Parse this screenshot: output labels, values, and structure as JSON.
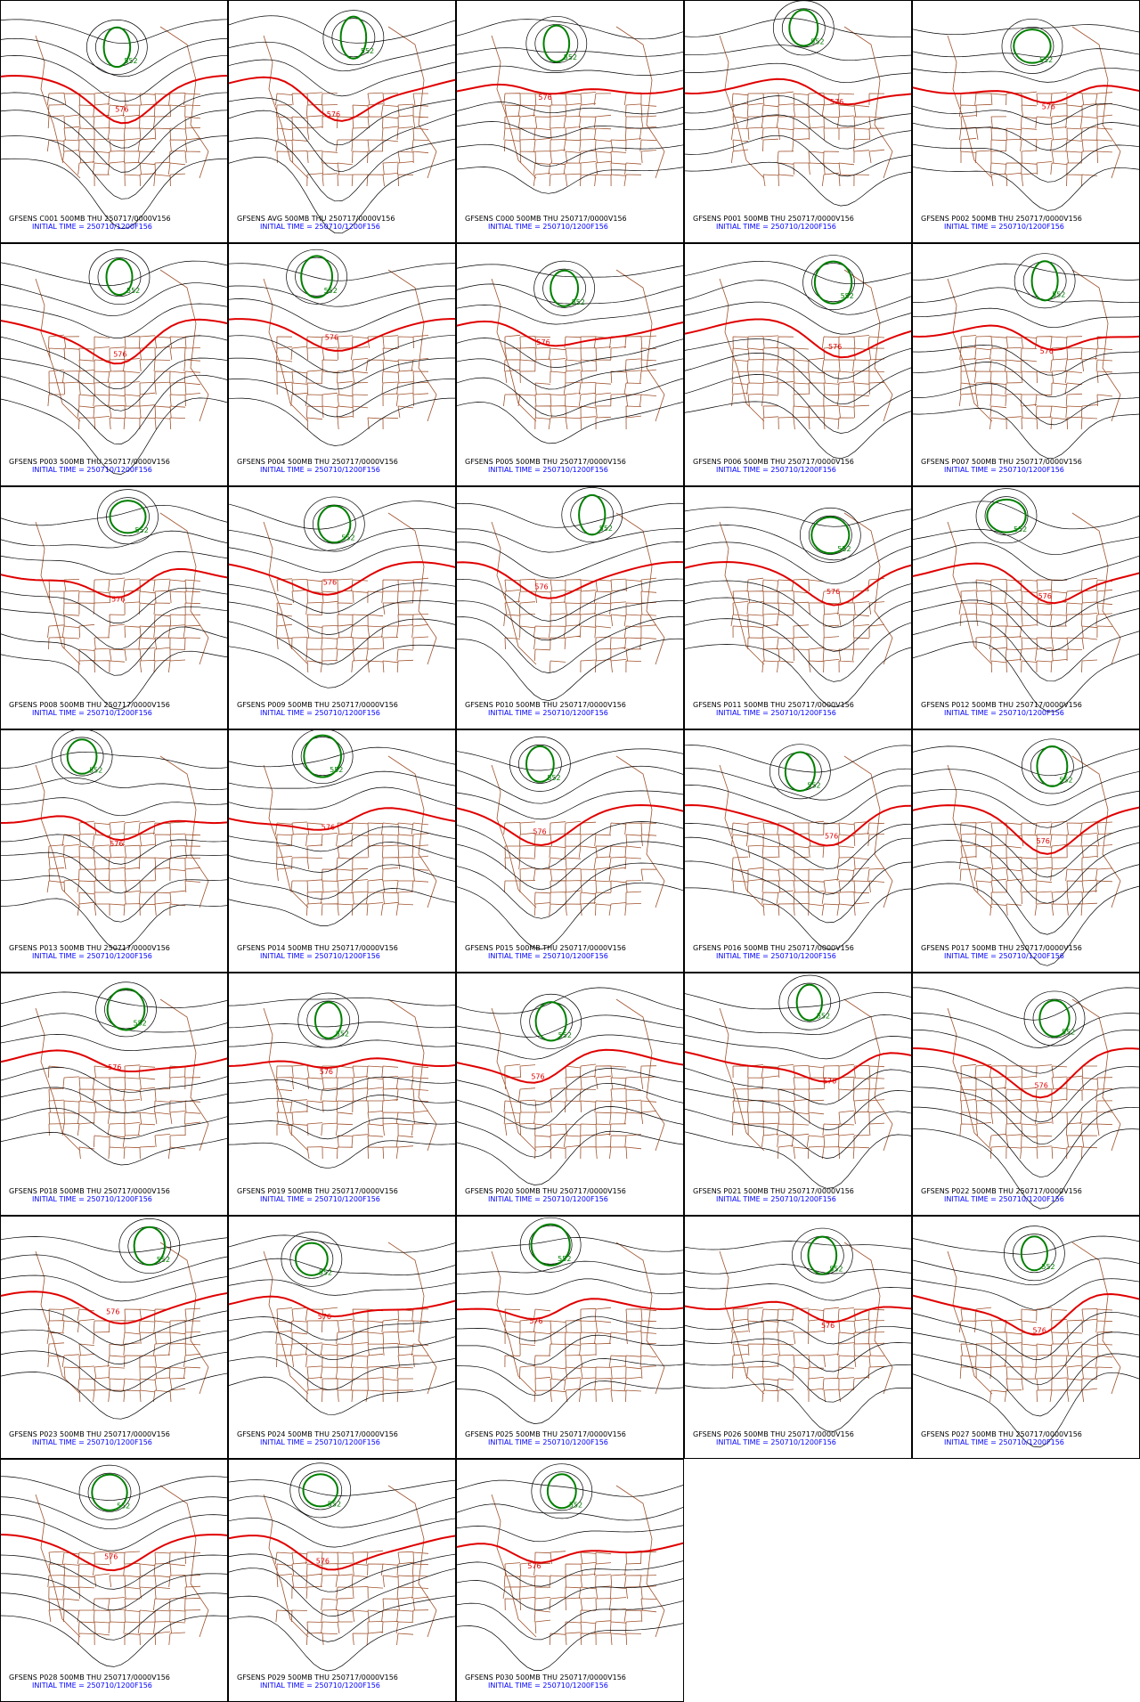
{
  "panels": [
    {
      "title": "GFSENS C001 500MB THU 250717/0000V156",
      "subtitle": "INITIAL TIME = 250710/1200F156",
      "labels": [
        "552",
        "576"
      ]
    },
    {
      "title": "GFSENS AVG 500MB THU 250717/0000V156",
      "subtitle": "INITIAL TIME = 250710/1200F156",
      "labels": [
        "552",
        "576"
      ]
    },
    {
      "title": "GFSENS C000 500MB THU 250717/0000V156",
      "subtitle": "INITIAL TIME = 250710/1200F156",
      "labels": [
        "552",
        "576"
      ]
    },
    {
      "title": "GFSENS P001 500MB THU 250717/0000V156",
      "subtitle": "INITIAL TIME = 250710/1200F156",
      "labels": [
        "552",
        "576"
      ]
    },
    {
      "title": "GFSENS P002 500MB THU 250717/0000V156",
      "subtitle": "INITIAL TIME = 250710/1200F156",
      "labels": [
        "552",
        "576"
      ]
    },
    {
      "title": "GFSENS P003 500MB THU 250717/0000V156",
      "subtitle": "INITIAL TIME = 250710/1200F156",
      "labels": [
        "552",
        "576"
      ]
    },
    {
      "title": "GFSENS P004 500MB THU 250717/0000V156",
      "subtitle": "INITIAL TIME = 250710/1200F156",
      "labels": [
        "552",
        "576"
      ]
    },
    {
      "title": "GFSENS P005 500MB THU 250717/0000V156",
      "subtitle": "INITIAL TIME = 250710/1200F156",
      "labels": [
        "552",
        "576"
      ]
    },
    {
      "title": "GFSENS P006 500MB THU 250717/0000V156",
      "subtitle": "INITIAL TIME = 250710/1200F156",
      "labels": [
        "552",
        "576"
      ]
    },
    {
      "title": "GFSENS P007 500MB THU 250717/0000V156",
      "subtitle": "INITIAL TIME = 250710/1200F156",
      "labels": [
        "552",
        "576"
      ]
    },
    {
      "title": "GFSENS P008 500MB THU 250717/0000V156",
      "subtitle": "INITIAL TIME = 250710/1200F156",
      "labels": [
        "552",
        "576"
      ]
    },
    {
      "title": "GFSENS P009 500MB THU 250717/0000V156",
      "subtitle": "INITIAL TIME = 250710/1200F156",
      "labels": [
        "552",
        "576"
      ]
    },
    {
      "title": "GFSENS P010 500MB THU 250717/0000V156",
      "subtitle": "INITIAL TIME = 250710/1200F156",
      "labels": [
        "552",
        "576"
      ]
    },
    {
      "title": "GFSENS P011 500MB THU 250717/0000V156",
      "subtitle": "INITIAL TIME = 250710/1200F156",
      "labels": [
        "552",
        "576"
      ]
    },
    {
      "title": "GFSENS P012 500MB THU 250717/0000V156",
      "subtitle": "INITIAL TIME = 250710/1200F156",
      "labels": [
        "552",
        "576"
      ]
    },
    {
      "title": "GFSENS P013 500MB THU 250717/0000V156",
      "subtitle": "INITIAL TIME = 250710/1200F156",
      "labels": [
        "552",
        "576"
      ]
    },
    {
      "title": "GFSENS P014 500MB THU 250717/0000V156",
      "subtitle": "INITIAL TIME = 250710/1200F156",
      "labels": [
        "552",
        "576"
      ]
    },
    {
      "title": "GFSENS P015 500MB THU 250717/0000V156",
      "subtitle": "INITIAL TIME = 250710/1200F156",
      "labels": [
        "552",
        "576"
      ]
    },
    {
      "title": "GFSENS P016 500MB THU 250717/0000V156",
      "subtitle": "INITIAL TIME = 250710/1200F156",
      "labels": [
        "552",
        "576"
      ]
    },
    {
      "title": "GFSENS P017 500MB THU 250717/0000V156",
      "subtitle": "INITIAL TIME = 250710/1200F156",
      "labels": [
        "552",
        "576"
      ]
    },
    {
      "title": "GFSENS P018 500MB THU 250717/0000V156",
      "subtitle": "INITIAL TIME = 250710/1200F156",
      "labels": [
        "552",
        "576"
      ]
    },
    {
      "title": "GFSENS P019 500MB THU 250717/0000V156",
      "subtitle": "INITIAL TIME = 250710/1200F156",
      "labels": [
        "552",
        "576"
      ]
    },
    {
      "title": "GFSENS P020 500MB THU 250717/0000V156",
      "subtitle": "INITIAL TIME = 250710/1200F156",
      "labels": [
        "552",
        "576"
      ]
    },
    {
      "title": "GFSENS P021 500MB THU 250717/0000V156",
      "subtitle": "INITIAL TIME = 250710/1200F156",
      "labels": [
        "552",
        "576"
      ]
    },
    {
      "title": "GFSENS P022 500MB THU 250717/0000V156",
      "subtitle": "INITIAL TIME = 250710/1200F156",
      "labels": [
        "552",
        "576"
      ]
    },
    {
      "title": "GFSENS P023 500MB THU 250717/0000V156",
      "subtitle": "INITIAL TIME = 250710/1200F156",
      "labels": [
        "552",
        "576"
      ]
    },
    {
      "title": "GFSENS P024 500MB THU 250717/0000V156",
      "subtitle": "INITIAL TIME = 250710/1200F156",
      "labels": [
        "552",
        "576"
      ]
    },
    {
      "title": "GFSENS P025 500MB THU 250717/0000V156",
      "subtitle": "INITIAL TIME = 250710/1200F156",
      "labels": [
        "552",
        "576"
      ]
    },
    {
      "title": "GFSENS P026 500MB THU 250717/0000V156",
      "subtitle": "INITIAL TIME = 250710/1200F156",
      "labels": [
        "552",
        "576"
      ]
    },
    {
      "title": "GFSENS P027 500MB THU 250717/0000V156",
      "subtitle": "INITIAL TIME = 250710/1200F156",
      "labels": [
        "552",
        "576"
      ]
    },
    {
      "title": "GFSENS P028 500MB THU 250717/0000V156",
      "subtitle": "INITIAL TIME = 250710/1200F156",
      "labels": [
        "552",
        "576"
      ]
    },
    {
      "title": "GFSENS P029 500MB THU 250717/0000V156",
      "subtitle": "INITIAL TIME = 250710/1200F156",
      "labels": [
        "552",
        "576"
      ]
    },
    {
      "title": "GFSENS P030 500MB THU 250717/0000V156",
      "subtitle": "INITIAL TIME = 250710/1200F156",
      "labels": [
        "552",
        "576"
      ]
    }
  ]
}
